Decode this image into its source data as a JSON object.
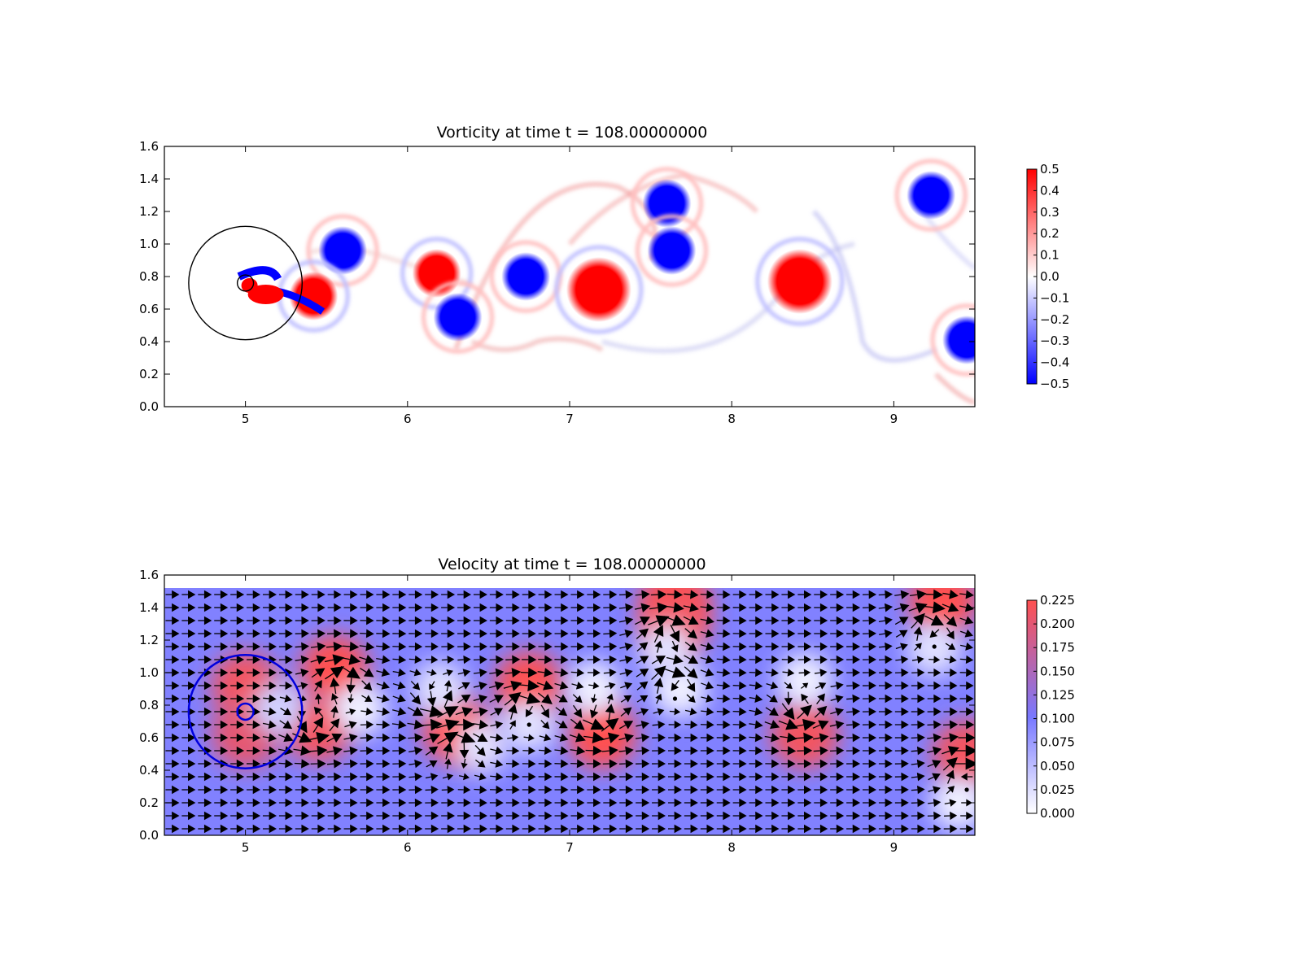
{
  "chart_data": [
    {
      "type": "heatmap",
      "title": "Vorticity at time t =   108.00000000",
      "xlim": [
        4.5,
        9.5
      ],
      "ylim": [
        0.0,
        1.6
      ],
      "xticks": [
        "5",
        "6",
        "7",
        "8",
        "9"
      ],
      "yticks": [
        "0.0",
        "0.2",
        "0.4",
        "0.6",
        "0.8",
        "1.0",
        "1.2",
        "1.4",
        "1.6"
      ],
      "colormap": "bwr",
      "colorbar": {
        "range": [
          -0.5,
          0.5
        ],
        "ticks": [
          "0.5",
          "0.4",
          "0.3",
          "0.2",
          "0.1",
          "0.0",
          "−0.1",
          "−0.2",
          "−0.3",
          "−0.4",
          "−0.5"
        ]
      },
      "vortices": [
        {
          "x": 5.6,
          "y": 0.96,
          "sign": -1
        },
        {
          "x": 5.42,
          "y": 0.68,
          "sign": 1
        },
        {
          "x": 6.18,
          "y": 0.82,
          "sign": 1
        },
        {
          "x": 6.31,
          "y": 0.55,
          "sign": -1
        },
        {
          "x": 6.73,
          "y": 0.8,
          "sign": -1
        },
        {
          "x": 7.18,
          "y": 0.72,
          "sign": 1
        },
        {
          "x": 7.6,
          "y": 1.25,
          "sign": -1
        },
        {
          "x": 7.63,
          "y": 0.96,
          "sign": -1
        },
        {
          "x": 8.42,
          "y": 0.77,
          "sign": 1
        },
        {
          "x": 9.23,
          "y": 1.3,
          "sign": -1
        },
        {
          "x": 9.45,
          "y": 0.41,
          "sign": -1
        }
      ],
      "circles": [
        {
          "cx": 5.0,
          "cy": 0.76,
          "r": 0.35
        },
        {
          "cx": 5.0,
          "cy": 0.76,
          "r": 0.05
        }
      ]
    },
    {
      "type": "heatmap",
      "title": "Velocity at time t =   108.00000000",
      "xlim": [
        4.5,
        9.5
      ],
      "ylim": [
        0.0,
        1.6
      ],
      "xticks": [
        "5",
        "6",
        "7",
        "8",
        "9"
      ],
      "yticks": [
        "0.0",
        "0.2",
        "0.4",
        "0.6",
        "0.8",
        "1.0",
        "1.2",
        "1.4",
        "1.6"
      ],
      "colormap": "white-blue-red",
      "field_ymax": 1.52,
      "colorbar": {
        "range": [
          0.0,
          0.225
        ],
        "ticks": [
          "0.225",
          "0.200",
          "0.175",
          "0.150",
          "0.125",
          "0.100",
          "0.075",
          "0.050",
          "0.025",
          "0.000"
        ]
      },
      "overlay": "quiver",
      "circles": [
        {
          "cx": 5.0,
          "cy": 0.76,
          "r": 0.35
        },
        {
          "cx": 5.0,
          "cy": 0.76,
          "r": 0.05
        }
      ]
    }
  ]
}
